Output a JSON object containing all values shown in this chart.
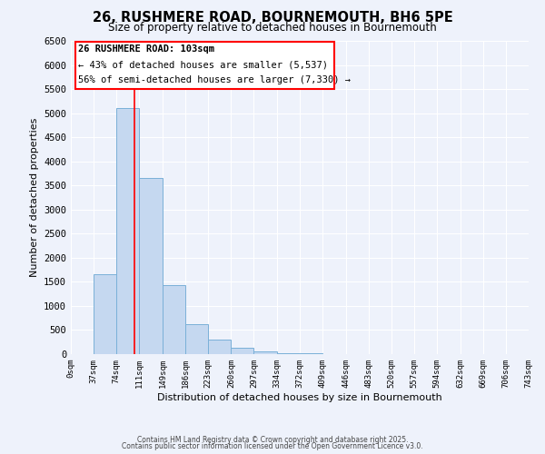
{
  "title": "26, RUSHMERE ROAD, BOURNEMOUTH, BH6 5PE",
  "subtitle": "Size of property relative to detached houses in Bournemouth",
  "xlabel": "Distribution of detached houses by size in Bournemouth",
  "ylabel": "Number of detached properties",
  "bin_edges": [
    0,
    37,
    74,
    111,
    149,
    186,
    223,
    260,
    297,
    334,
    372,
    409,
    446,
    483,
    520,
    557,
    594,
    632,
    669,
    706,
    743
  ],
  "bar_heights": [
    0,
    1650,
    5100,
    3650,
    1430,
    620,
    310,
    140,
    60,
    20,
    10,
    5,
    1,
    0,
    0,
    0,
    0,
    0,
    0,
    0
  ],
  "bar_color": "#c5d8f0",
  "bar_edgecolor": "#7ab0d8",
  "bar_linewidth": 0.7,
  "property_line_x": 103,
  "property_line_color": "red",
  "ylim": [
    0,
    6500
  ],
  "xlim": [
    0,
    743
  ],
  "annotation_title": "26 RUSHMERE ROAD: 103sqm",
  "annotation_line1": "← 43% of detached houses are smaller (5,537)",
  "annotation_line2": "56% of semi-detached houses are larger (7,330) →",
  "annotation_box_color": "red",
  "annotation_box_facecolor": "white",
  "footer_line1": "Contains HM Land Registry data © Crown copyright and database right 2025.",
  "footer_line2": "Contains public sector information licensed under the Open Government Licence v3.0.",
  "background_color": "#eef2fb",
  "grid_color": "#ffffff",
  "yticks": [
    0,
    500,
    1000,
    1500,
    2000,
    2500,
    3000,
    3500,
    4000,
    4500,
    5000,
    5500,
    6000,
    6500
  ],
  "title_fontsize": 10.5,
  "subtitle_fontsize": 8.5,
  "ylabel_fontsize": 8,
  "xlabel_fontsize": 8,
  "ytick_fontsize": 7.5,
  "xtick_fontsize": 6.5,
  "footer_fontsize": 5.5,
  "annotation_title_fontsize": 7.5,
  "annotation_text_fontsize": 7.5
}
